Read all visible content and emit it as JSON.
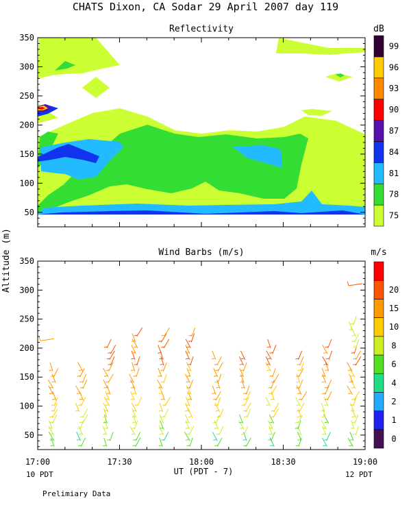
{
  "figure": {
    "title": "CHATS Dixon, CA  Sodar  29 April 2007  day 119",
    "y_axis_label": "Altitude (m)",
    "x_axis_label": "UT  (PDT - 7)",
    "left_local_label": "10 PDT",
    "right_local_label": "12 PDT",
    "footnote": "Prelimiary Data"
  },
  "colors": {
    "axis": "#000000",
    "background": "#ffffff"
  },
  "chart_data": [
    {
      "type": "heatmap",
      "title": "Reflectivity",
      "colorbar_label": "dB",
      "x_ticks": [
        "17:00",
        "17:30",
        "18:00",
        "18:30",
        "19:00"
      ],
      "x_range_minutes_ut": [
        1020,
        1140
      ],
      "y_ticks": [
        50,
        100,
        150,
        200,
        250,
        300,
        350
      ],
      "ylim": [
        25,
        350
      ],
      "levels": [
        {
          "label": "75",
          "color": "#ccff33"
        },
        {
          "label": "78",
          "color": "#33dd33"
        },
        {
          "label": "81",
          "color": "#22bbff"
        },
        {
          "label": "84",
          "color": "#1133ee"
        },
        {
          "label": "87",
          "color": "#5511aa"
        },
        {
          "label": "90",
          "color": "#ff0000"
        },
        {
          "label": "93",
          "color": "#ff8800"
        },
        {
          "label": "96",
          "color": "#ffcc00"
        },
        {
          "label": "99",
          "color": "#330033"
        }
      ]
    },
    {
      "type": "scatter",
      "title": "Wind Barbs (m/s)",
      "colorbar_label": "m/s",
      "x_ticks": [
        "17:00",
        "17:30",
        "18:00",
        "18:30",
        "19:00"
      ],
      "x_range_minutes_ut": [
        1020,
        1140
      ],
      "y_ticks": [
        50,
        100,
        150,
        200,
        250,
        300,
        350
      ],
      "ylim": [
        25,
        350
      ],
      "speed_levels": [
        {
          "label": "0",
          "color": "#441155"
        },
        {
          "label": "1",
          "color": "#2222ee"
        },
        {
          "label": "2",
          "color": "#22aaff"
        },
        {
          "label": "4",
          "color": "#22dd88"
        },
        {
          "label": "6",
          "color": "#55dd22"
        },
        {
          "label": "8",
          "color": "#ccee22"
        },
        {
          "label": "10",
          "color": "#ffcc00"
        },
        {
          "label": "15",
          "color": "#ff9900"
        },
        {
          "label": "20",
          "color": "#ff5500"
        },
        {
          "label": "",
          "color": "#ff0000"
        }
      ],
      "profiles_minutes_ut": [
        1026,
        1036,
        1046,
        1056,
        1066,
        1076,
        1086,
        1096,
        1106,
        1116,
        1126,
        1136
      ],
      "profile_tops_m": [
        165,
        165,
        200,
        220,
        220,
        220,
        180,
        180,
        200,
        185,
        200,
        240
      ],
      "extra_points": [
        {
          "t": 1023,
          "h": 215,
          "level": 7
        },
        {
          "t": 1136,
          "h": 310,
          "level": 8
        }
      ]
    }
  ]
}
